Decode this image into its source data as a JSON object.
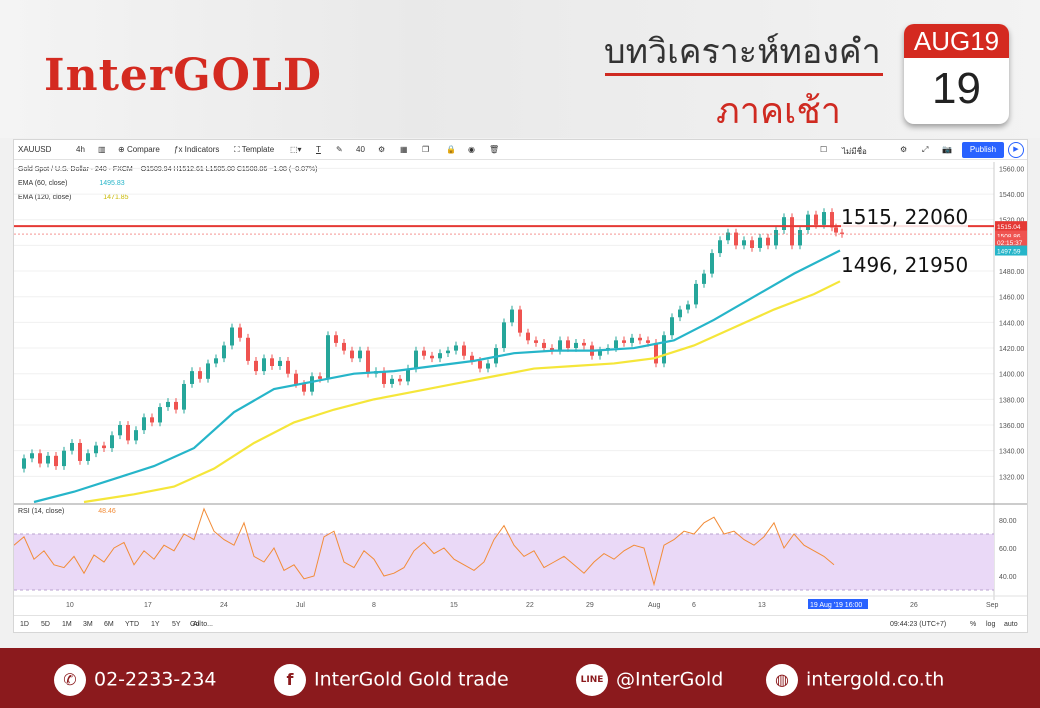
{
  "header": {
    "logo": "InterGOLD",
    "title_th": "บทวิเคราะห์ทองคำ",
    "subtitle_th": "ภาคเช้า",
    "calendar_month": "AUG19",
    "calendar_day": "19"
  },
  "toolbar": {
    "symbol": "XAUUSD",
    "interval": "4h",
    "compare": "Compare",
    "indicators": "Indicators",
    "templates": "Template",
    "font_size": "40",
    "watchlist": "ไม่มีชื่อ",
    "publish": "Publish"
  },
  "legend": {
    "title": "Gold Spot / U.S. Dollar · 240 · FXCM",
    "ohlc": "O1509.94  H1512.61  L1505.00  C1508.86  −1.08 (−0.07%)",
    "ema60_label": "EMA (60, close)",
    "ema60_value": "1495.83",
    "ema120_label": "EMA (120, close)",
    "ema120_value": "1471.85",
    "rsi_label": "RSI (14, close)",
    "rsi_value": "48.46"
  },
  "price_tags": {
    "red": "1515.04",
    "last": "1508.86",
    "countdown": "02:15:37",
    "ema": "1497.59"
  },
  "annotations": {
    "resistance": "1515, 22060",
    "support": "1496, 21950"
  },
  "bottom": {
    "ranges": [
      "1D",
      "5D",
      "1M",
      "3M",
      "6M",
      "YTD",
      "1Y",
      "5Y",
      "All"
    ],
    "goto": "Go to...",
    "clock": "09:44:23 (UTC+7)",
    "pct": "%",
    "log": "log",
    "auto": "auto"
  },
  "footer": {
    "phone": "02-2233-234",
    "facebook": "InterGold Gold trade",
    "line": "@InterGold",
    "web": "intergold.co.th"
  },
  "colors": {
    "brand_red": "#d42a20",
    "footer_bg": "#8b1a1d",
    "ema60": "#26b5c9",
    "ema120": "#f5e63a",
    "rsi": "#f28c38",
    "rsi_band": "#ead9f7",
    "candle_up": "#26a69a",
    "candle_down": "#ef5350",
    "resistance_line": "#e53935"
  },
  "chart_data": {
    "type": "line",
    "title": "Gold Spot / U.S. Dollar · 240 · FXCM",
    "x_ticks": [
      "10",
      "17",
      "24",
      "Jul",
      "8",
      "15",
      "22",
      "29",
      "Aug",
      "6",
      "13",
      "19 Aug '19 16:00",
      "26",
      "Sep"
    ],
    "y_ticks": [
      1320,
      1340,
      1360,
      1380,
      1400,
      1420,
      1440,
      1460,
      1480,
      1500,
      1520,
      1540,
      1560
    ],
    "ylim": [
      1300,
      1565
    ],
    "close_path": [
      [
        0,
        1326
      ],
      [
        8,
        1334
      ],
      [
        16,
        1338
      ],
      [
        24,
        1330
      ],
      [
        32,
        1336
      ],
      [
        40,
        1328
      ],
      [
        48,
        1340
      ],
      [
        56,
        1346
      ],
      [
        64,
        1332
      ],
      [
        72,
        1338
      ],
      [
        80,
        1344
      ],
      [
        88,
        1342
      ],
      [
        96,
        1352
      ],
      [
        104,
        1360
      ],
      [
        112,
        1348
      ],
      [
        120,
        1356
      ],
      [
        128,
        1366
      ],
      [
        136,
        1362
      ],
      [
        144,
        1374
      ],
      [
        152,
        1378
      ],
      [
        160,
        1372
      ],
      [
        168,
        1392
      ],
      [
        176,
        1402
      ],
      [
        184,
        1396
      ],
      [
        192,
        1408
      ],
      [
        200,
        1412
      ],
      [
        208,
        1422
      ],
      [
        216,
        1436
      ],
      [
        224,
        1428
      ],
      [
        232,
        1410
      ],
      [
        240,
        1402
      ],
      [
        248,
        1412
      ],
      [
        256,
        1406
      ],
      [
        264,
        1410
      ],
      [
        272,
        1400
      ],
      [
        280,
        1392
      ],
      [
        288,
        1386
      ],
      [
        296,
        1398
      ],
      [
        304,
        1396
      ],
      [
        312,
        1430
      ],
      [
        320,
        1424
      ],
      [
        328,
        1418
      ],
      [
        336,
        1412
      ],
      [
        344,
        1418
      ],
      [
        352,
        1400
      ],
      [
        360,
        1402
      ],
      [
        368,
        1392
      ],
      [
        376,
        1396
      ],
      [
        384,
        1394
      ],
      [
        392,
        1404
      ],
      [
        400,
        1418
      ],
      [
        408,
        1414
      ],
      [
        416,
        1412
      ],
      [
        424,
        1416
      ],
      [
        432,
        1418
      ],
      [
        440,
        1422
      ],
      [
        448,
        1414
      ],
      [
        456,
        1410
      ],
      [
        464,
        1404
      ],
      [
        472,
        1408
      ],
      [
        480,
        1420
      ],
      [
        488,
        1440
      ],
      [
        496,
        1450
      ],
      [
        504,
        1432
      ],
      [
        512,
        1426
      ],
      [
        520,
        1424
      ],
      [
        528,
        1420
      ],
      [
        536,
        1418
      ],
      [
        544,
        1426
      ],
      [
        552,
        1420
      ],
      [
        560,
        1424
      ],
      [
        568,
        1422
      ],
      [
        576,
        1414
      ],
      [
        584,
        1418
      ],
      [
        592,
        1420
      ],
      [
        600,
        1426
      ],
      [
        608,
        1424
      ],
      [
        616,
        1428
      ],
      [
        624,
        1426
      ],
      [
        632,
        1424
      ],
      [
        640,
        1408
      ],
      [
        648,
        1430
      ],
      [
        656,
        1444
      ],
      [
        664,
        1450
      ],
      [
        672,
        1454
      ],
      [
        680,
        1470
      ],
      [
        688,
        1478
      ],
      [
        696,
        1494
      ],
      [
        704,
        1504
      ],
      [
        712,
        1510
      ],
      [
        720,
        1500
      ],
      [
        728,
        1504
      ],
      [
        736,
        1498
      ],
      [
        744,
        1506
      ],
      [
        752,
        1500
      ],
      [
        760,
        1512
      ],
      [
        768,
        1522
      ],
      [
        776,
        1500
      ],
      [
        784,
        1512
      ],
      [
        792,
        1524
      ],
      [
        800,
        1516
      ],
      [
        808,
        1526
      ],
      [
        816,
        1514
      ],
      [
        820,
        1510
      ],
      [
        826,
        1509
      ]
    ],
    "ema60_path": [
      [
        20,
        1300
      ],
      [
        60,
        1308
      ],
      [
        100,
        1318
      ],
      [
        140,
        1328
      ],
      [
        180,
        1342
      ],
      [
        220,
        1370
      ],
      [
        260,
        1388
      ],
      [
        300,
        1394
      ],
      [
        340,
        1400
      ],
      [
        380,
        1402
      ],
      [
        420,
        1406
      ],
      [
        460,
        1410
      ],
      [
        500,
        1416
      ],
      [
        540,
        1418
      ],
      [
        580,
        1418
      ],
      [
        620,
        1420
      ],
      [
        660,
        1426
      ],
      [
        700,
        1442
      ],
      [
        740,
        1460
      ],
      [
        780,
        1478
      ],
      [
        826,
        1496
      ]
    ],
    "ema120_path": [
      [
        70,
        1300
      ],
      [
        120,
        1306
      ],
      [
        160,
        1312
      ],
      [
        200,
        1326
      ],
      [
        240,
        1346
      ],
      [
        280,
        1362
      ],
      [
        320,
        1372
      ],
      [
        360,
        1380
      ],
      [
        400,
        1386
      ],
      [
        440,
        1392
      ],
      [
        480,
        1398
      ],
      [
        520,
        1404
      ],
      [
        560,
        1406
      ],
      [
        600,
        1408
      ],
      [
        640,
        1412
      ],
      [
        680,
        1422
      ],
      [
        720,
        1436
      ],
      [
        760,
        1450
      ],
      [
        800,
        1462
      ],
      [
        826,
        1472
      ]
    ],
    "resistance": 1515,
    "support_label_price": 1496,
    "rsi": {
      "ylim": [
        30,
        90
      ],
      "ticks": [
        40,
        60,
        80
      ],
      "band": [
        30,
        70
      ],
      "values": [
        [
          0,
          62
        ],
        [
          10,
          68
        ],
        [
          20,
          52
        ],
        [
          30,
          58
        ],
        [
          40,
          48
        ],
        [
          50,
          46
        ],
        [
          60,
          54
        ],
        [
          70,
          42
        ],
        [
          80,
          55
        ],
        [
          90,
          50
        ],
        [
          100,
          60
        ],
        [
          110,
          64
        ],
        [
          120,
          48
        ],
        [
          130,
          58
        ],
        [
          140,
          52
        ],
        [
          150,
          62
        ],
        [
          160,
          58
        ],
        [
          170,
          70
        ],
        [
          180,
          66
        ],
        [
          190,
          88
        ],
        [
          200,
          72
        ],
        [
          210,
          66
        ],
        [
          220,
          62
        ],
        [
          230,
          78
        ],
        [
          240,
          54
        ],
        [
          250,
          50
        ],
        [
          260,
          60
        ],
        [
          270,
          44
        ],
        [
          280,
          48
        ],
        [
          290,
          38
        ],
        [
          300,
          40
        ],
        [
          310,
          68
        ],
        [
          320,
          72
        ],
        [
          330,
          50
        ],
        [
          340,
          46
        ],
        [
          350,
          58
        ],
        [
          360,
          52
        ],
        [
          370,
          40
        ],
        [
          380,
          42
        ],
        [
          390,
          46
        ],
        [
          400,
          58
        ],
        [
          410,
          64
        ],
        [
          420,
          56
        ],
        [
          430,
          60
        ],
        [
          440,
          52
        ],
        [
          450,
          48
        ],
        [
          460,
          44
        ],
        [
          470,
          50
        ],
        [
          480,
          66
        ],
        [
          490,
          76
        ],
        [
          500,
          62
        ],
        [
          510,
          54
        ],
        [
          520,
          58
        ],
        [
          530,
          46
        ],
        [
          540,
          50
        ],
        [
          550,
          54
        ],
        [
          560,
          48
        ],
        [
          570,
          42
        ],
        [
          580,
          50
        ],
        [
          590,
          56
        ],
        [
          600,
          52
        ],
        [
          610,
          58
        ],
        [
          620,
          62
        ],
        [
          630,
          60
        ],
        [
          640,
          34
        ],
        [
          650,
          62
        ],
        [
          660,
          66
        ],
        [
          670,
          72
        ],
        [
          680,
          70
        ],
        [
          690,
          78
        ],
        [
          700,
          82
        ],
        [
          710,
          70
        ],
        [
          720,
          72
        ],
        [
          730,
          66
        ],
        [
          740,
          62
        ],
        [
          750,
          68
        ],
        [
          760,
          78
        ],
        [
          770,
          60
        ],
        [
          780,
          70
        ],
        [
          790,
          62
        ],
        [
          800,
          58
        ],
        [
          810,
          54
        ],
        [
          820,
          48
        ]
      ]
    }
  }
}
